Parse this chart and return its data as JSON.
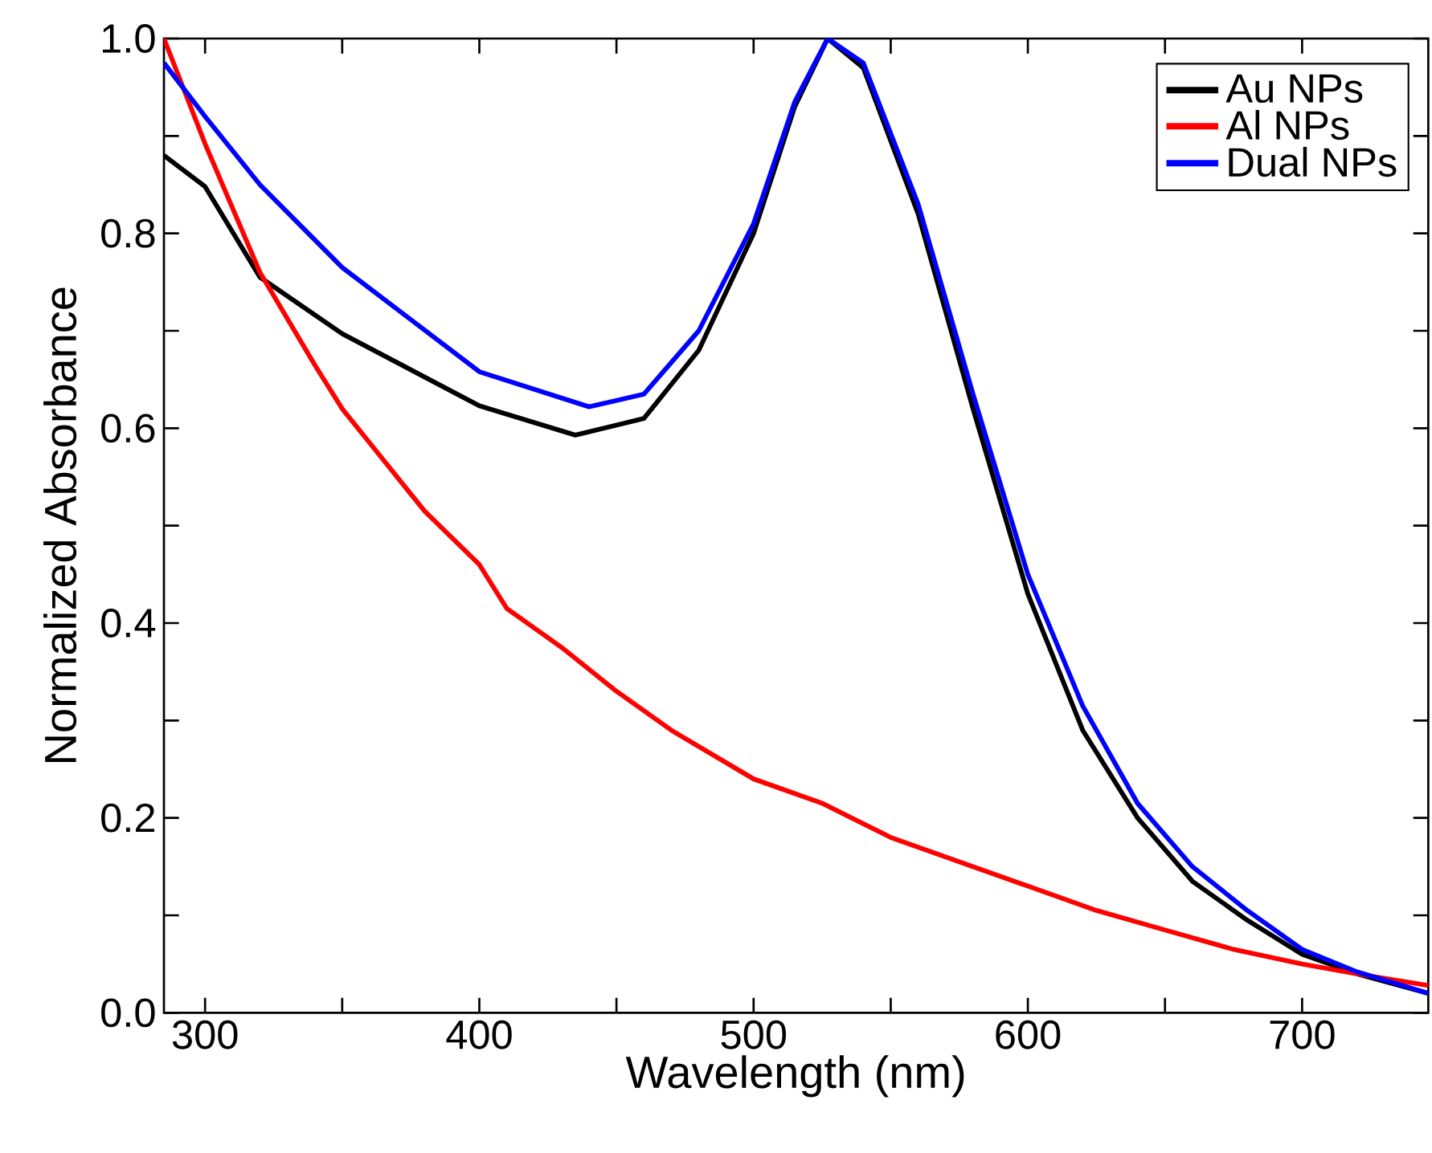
{
  "chart_data": {
    "type": "line",
    "xlabel": "Wavelength (nm)",
    "ylabel": "Normalized Absorbance",
    "xlim": [
      285,
      746
    ],
    "ylim": [
      0,
      1
    ],
    "xticks": [
      300,
      {
        "value": 350,
        "label": null
      },
      400,
      {
        "value": 450,
        "label": null
      },
      500,
      {
        "value": 550,
        "label": null
      },
      600,
      {
        "value": 650,
        "label": null
      },
      700
    ],
    "yticks": [
      {
        "value": 0,
        "label": "0.0"
      },
      {
        "value": 0.1,
        "label": null
      },
      0.2,
      {
        "value": 0.3,
        "label": null
      },
      0.4,
      {
        "value": 0.5,
        "label": null
      },
      0.6,
      {
        "value": 0.7,
        "label": null
      },
      0.8,
      {
        "value": 0.9,
        "label": null
      },
      {
        "value": 1,
        "label": "1.0"
      }
    ],
    "grid": false,
    "legend": "top right",
    "marker": "none",
    "line_style": "solid",
    "series": [
      {
        "name": "Au NPs",
        "color": "#000000",
        "x": [
          285,
          300,
          320,
          350,
          400,
          435,
          460,
          480,
          500,
          515,
          527,
          540,
          560,
          580,
          600,
          620,
          640,
          660,
          680,
          700,
          720,
          746
        ],
        "values": [
          0.88,
          0.848,
          0.755,
          0.697,
          0.623,
          0.593,
          0.61,
          0.68,
          0.8,
          0.93,
          1.0,
          0.97,
          0.82,
          0.62,
          0.43,
          0.29,
          0.2,
          0.135,
          0.095,
          0.06,
          0.04,
          0.02
        ]
      },
      {
        "name": "Al NPs",
        "color": "#ff0000",
        "x": [
          285,
          300,
          320,
          340,
          350,
          360,
          380,
          400,
          410,
          430,
          450,
          470,
          500,
          525,
          550,
          575,
          600,
          625,
          650,
          675,
          700,
          720,
          746
        ],
        "values": [
          1.0,
          0.892,
          0.76,
          0.665,
          0.62,
          0.585,
          0.515,
          0.46,
          0.415,
          0.375,
          0.33,
          0.29,
          0.24,
          0.215,
          0.18,
          0.155,
          0.13,
          0.105,
          0.085,
          0.065,
          0.05,
          0.04,
          0.028
        ]
      },
      {
        "name": "Dual NPs",
        "color": "#0000ff",
        "x": [
          285,
          300,
          320,
          350,
          400,
          440,
          460,
          480,
          500,
          515,
          527,
          540,
          560,
          580,
          600,
          620,
          640,
          660,
          680,
          700,
          720,
          746
        ],
        "values": [
          0.975,
          0.92,
          0.85,
          0.765,
          0.658,
          0.622,
          0.635,
          0.7,
          0.81,
          0.935,
          1.0,
          0.975,
          0.83,
          0.635,
          0.45,
          0.315,
          0.215,
          0.15,
          0.105,
          0.065,
          0.042,
          0.02
        ]
      }
    ]
  }
}
